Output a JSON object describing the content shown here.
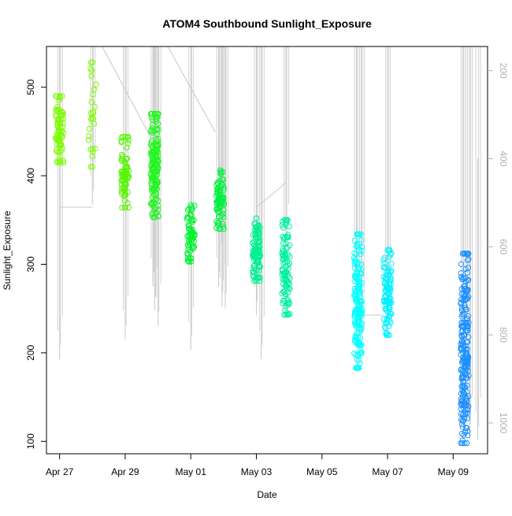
{
  "chart_data": {
    "type": "scatter",
    "title": "ATOM4 Southbound Sunlight_Exposure",
    "xlabel": "Date",
    "ylabel": "Sunlight_Exposure",
    "x_ticks": [
      "Apr 27",
      "Apr 29",
      "May 01",
      "May 03",
      "May 05",
      "May 07",
      "May 09"
    ],
    "x_tick_days": [
      0,
      2,
      4,
      6,
      8,
      10,
      12
    ],
    "xlim": [
      -0.4,
      13.05
    ],
    "y_ticks": [
      100,
      200,
      300,
      400,
      500
    ],
    "ylim": [
      86,
      546
    ],
    "y2_ticks": [
      200,
      400,
      600,
      800,
      1000
    ],
    "y2lim": [
      1070,
      145
    ],
    "grid": false,
    "legend": "none",
    "colors": [
      "#7cfc00",
      "#00ff40",
      "#00ffff",
      "#1e90ff"
    ],
    "line_color": "#c8c8c8",
    "point_clusters": [
      {
        "day": 0.0,
        "y_min": 415,
        "y_max": 490,
        "n": 70,
        "color": "#7cfc00"
      },
      {
        "day": 1.0,
        "y_min": 410,
        "y_max": 528,
        "n": 25,
        "color": "#7cfc00"
      },
      {
        "day": 2.0,
        "y_min": 364,
        "y_max": 444,
        "n": 70,
        "color": "#55f500"
      },
      {
        "day": 2.9,
        "y_min": 353,
        "y_max": 470,
        "n": 150,
        "color": "#22f620"
      },
      {
        "day": 4.0,
        "y_min": 303,
        "y_max": 367,
        "n": 60,
        "color": "#00f230"
      },
      {
        "day": 4.9,
        "y_min": 340,
        "y_max": 406,
        "n": 80,
        "color": "#00f040"
      },
      {
        "day": 6.0,
        "y_min": 281,
        "y_max": 352,
        "n": 100,
        "color": "#00f090"
      },
      {
        "day": 6.9,
        "y_min": 243,
        "y_max": 350,
        "n": 100,
        "color": "#00f0a0"
      },
      {
        "day": 9.1,
        "y_min": 183,
        "y_max": 334,
        "n": 160,
        "color": "#00ffff"
      },
      {
        "day": 10.0,
        "y_min": 220,
        "y_max": 316,
        "n": 100,
        "color": "#00f0ff"
      },
      {
        "day": 12.35,
        "y_min": 98,
        "y_max": 312,
        "n": 220,
        "color": "#1e90ff"
      }
    ],
    "secondary_line_segments": [
      {
        "day": 0.0,
        "top": 145,
        "bottom": 855
      },
      {
        "day": 1.0,
        "top": 145,
        "bottom": 505
      },
      {
        "day": 2.0,
        "top": 145,
        "bottom": 810
      },
      {
        "day": 2.85,
        "top": 145,
        "bottom": 690
      },
      {
        "day": 2.9,
        "top": 145,
        "bottom": 745
      },
      {
        "day": 3.0,
        "top": 145,
        "bottom": 780
      },
      {
        "day": 4.0,
        "top": 145,
        "bottom": 835
      },
      {
        "day": 4.85,
        "top": 145,
        "bottom": 690
      },
      {
        "day": 4.95,
        "top": 145,
        "bottom": 735
      },
      {
        "day": 5.05,
        "top": 145,
        "bottom": 740
      },
      {
        "day": 6.0,
        "top": 145,
        "bottom": 755
      },
      {
        "day": 6.15,
        "top": 145,
        "bottom": 855
      },
      {
        "day": 6.9,
        "top": 145,
        "bottom": 600
      },
      {
        "day": 9.05,
        "top": 145,
        "bottom": 790
      },
      {
        "day": 9.2,
        "top": 145,
        "bottom": 800
      },
      {
        "day": 10.0,
        "top": 145,
        "bottom": 760
      },
      {
        "day": 12.3,
        "top": 145,
        "bottom": 850
      },
      {
        "day": 12.5,
        "top": 145,
        "bottom": 1035
      },
      {
        "day": 12.75,
        "top": 400,
        "bottom": 1040
      }
    ],
    "secondary_connectors": [
      [
        [
          0.0,
          510
        ],
        [
          1.0,
          510
        ]
      ],
      [
        [
          1.3,
          145
        ],
        [
          2.8,
          355
        ]
      ],
      [
        [
          3.3,
          145
        ],
        [
          4.75,
          340
        ]
      ],
      [
        [
          6.0,
          510
        ],
        [
          6.9,
          455
        ]
      ],
      [
        [
          9.1,
          755
        ],
        [
          9.9,
          755
        ]
      ]
    ]
  }
}
